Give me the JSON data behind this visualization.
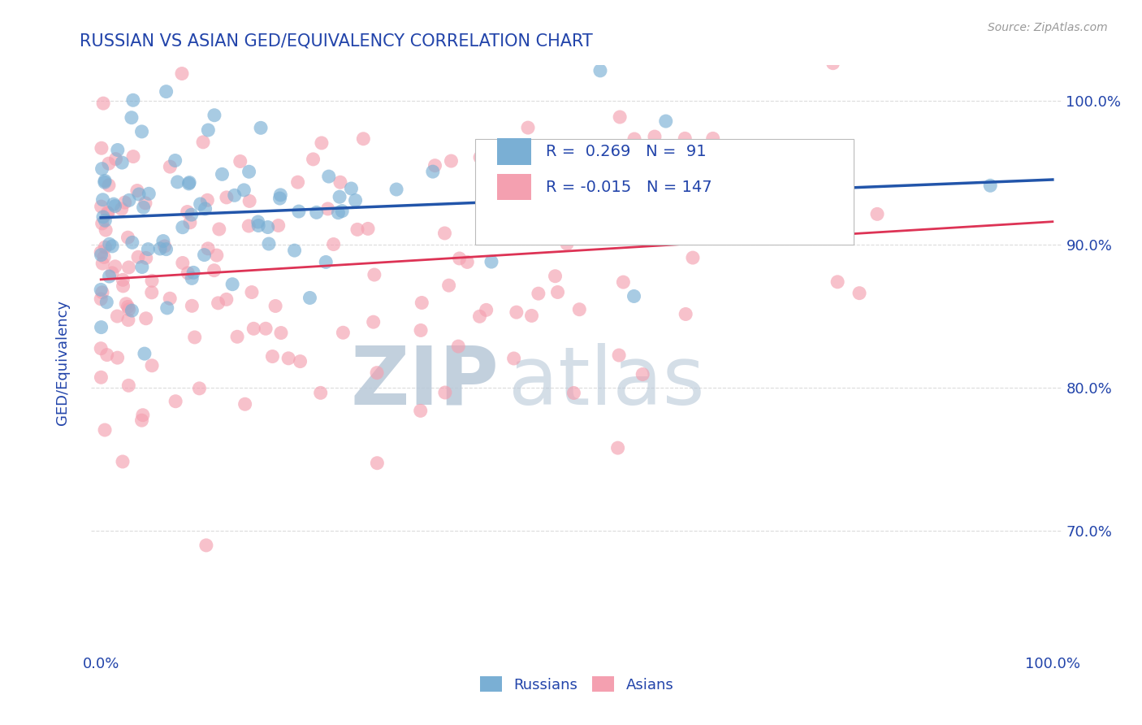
{
  "title": "RUSSIAN VS ASIAN GED/EQUIVALENCY CORRELATION CHART",
  "source_text": "Source: ZipAtlas.com",
  "ylabel": "GED/Equivalency",
  "y_min": 0.615,
  "y_max": 1.025,
  "x_min": -0.01,
  "x_max": 1.01,
  "russian_color": "#7AAFD4",
  "asian_color": "#F4A0B0",
  "russian_line_color": "#2255AA",
  "asian_line_color": "#DD3355",
  "watermark_color": "#C8D8E8",
  "R_russian": 0.269,
  "N_russian": 91,
  "R_asian": -0.015,
  "N_asian": 147,
  "background_color": "#FFFFFF",
  "grid_color": "#CCCCCC",
  "title_color": "#2244AA",
  "axis_label_color": "#2244AA",
  "tick_label_color": "#2244AA"
}
